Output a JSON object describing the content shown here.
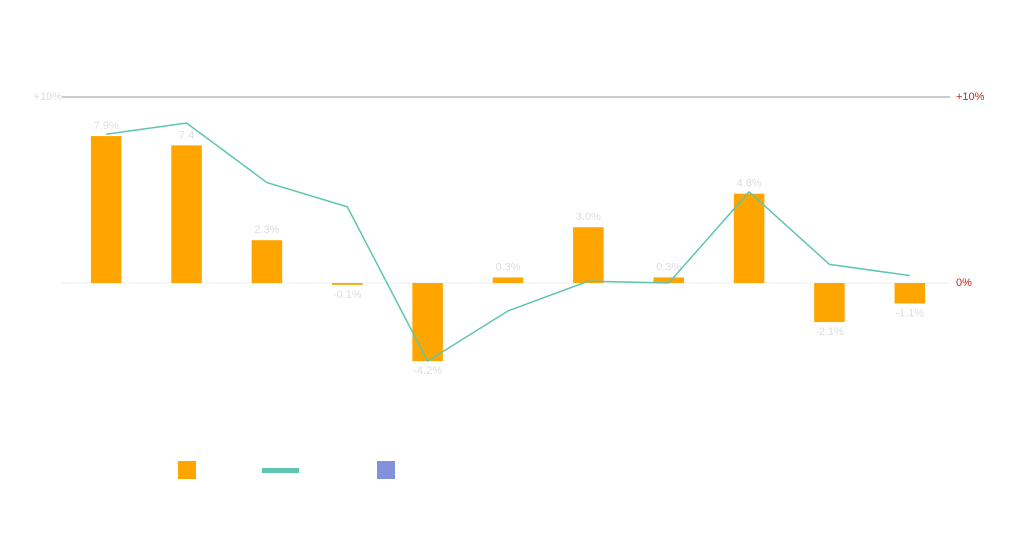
{
  "chart_data": {
    "type": "bar-line",
    "categories": [
      null,
      null,
      null,
      null,
      null,
      null,
      null,
      null,
      null,
      null,
      null
    ],
    "series": [
      {
        "type": "bar",
        "color": "#ffa500",
        "values": [
          7.9,
          7.4,
          2.3,
          -0.1,
          -4.2,
          0.3,
          3.0,
          0.3,
          4.8,
          -2.1,
          -1.1
        ],
        "value_labels": [
          "7.9%",
          "7.4",
          "2.3%",
          "-0.1%",
          "-4.2%",
          "0.3%",
          "3.0%",
          "0.3%",
          "4.8%",
          "-2.1%",
          "-1.1%"
        ]
      },
      {
        "type": "line",
        "axis": "y2",
        "color": "#5cc6b0",
        "values": [
          8.0,
          8.6,
          5.4,
          4.1,
          -4.2,
          -1.5,
          0.1,
          0.0,
          4.9,
          1.0,
          0.4
        ]
      },
      {
        "type": "bar",
        "color": "#8390db",
        "values": [
          null,
          null,
          null,
          null,
          null,
          null,
          null,
          null,
          null,
          null,
          null
        ]
      }
    ],
    "ylim": [
      -10,
      10
    ],
    "yticks": [
      {
        "value": 10,
        "label": "+10%"
      }
    ],
    "y2lim": [
      -10,
      10
    ],
    "y2ticks": [
      {
        "value": 10,
        "label": "+10%"
      },
      {
        "value": 0,
        "label": "0%"
      }
    ],
    "grid": true
  }
}
